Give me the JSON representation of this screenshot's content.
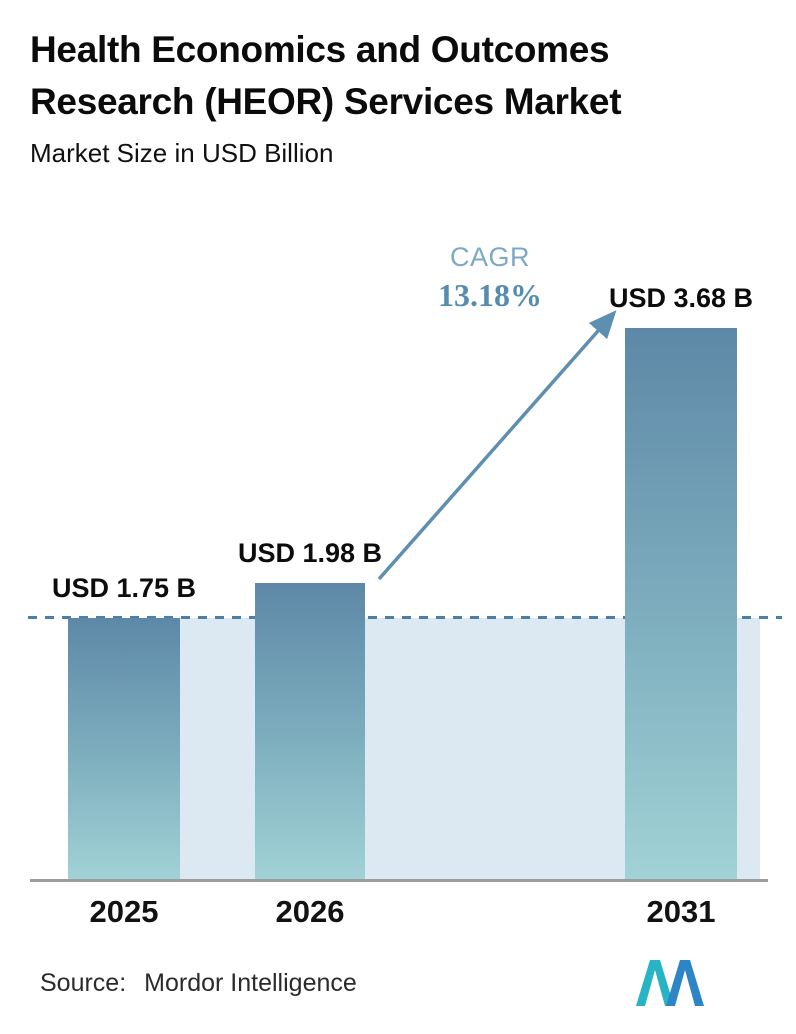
{
  "header": {
    "title": "Health Economics and Outcomes Research (HEOR) Services Market",
    "subtitle": "Market Size in USD Billion"
  },
  "chart_data": {
    "type": "bar",
    "title": "Health Economics and Outcomes Research (HEOR) Services Market",
    "subtitle": "Market Size in USD Billion",
    "unit": "USD Billion",
    "categories": [
      "2025",
      "2026",
      "2031"
    ],
    "values": [
      1.75,
      1.98,
      3.68
    ],
    "value_labels": [
      "USD 1.75 B",
      "USD 1.98 B",
      "USD 3.68 B"
    ],
    "ylim": [
      0,
      4.2
    ],
    "grid": false,
    "legend_position": "none",
    "annotations": {
      "cagr_label": "CAGR",
      "cagr_value": "13.18%",
      "reference_line_value": 1.75,
      "arrow": "from top of 2026 bar to top of 2031 bar"
    },
    "colors": {
      "bar_gradient_top": "#5d88a7",
      "bar_gradient_bottom": "#a0d2d6",
      "reference_line": "#4a80a6",
      "shaded_region": "#dde9f2",
      "arrow": "#5d8fb0",
      "cagr_label_text": "#7ea9c6",
      "cagr_value_text": "#568cb0",
      "axis_line": "#9c9c9c"
    }
  },
  "footer": {
    "source_label": "Source:",
    "source_value": "Mordor Intelligence"
  }
}
